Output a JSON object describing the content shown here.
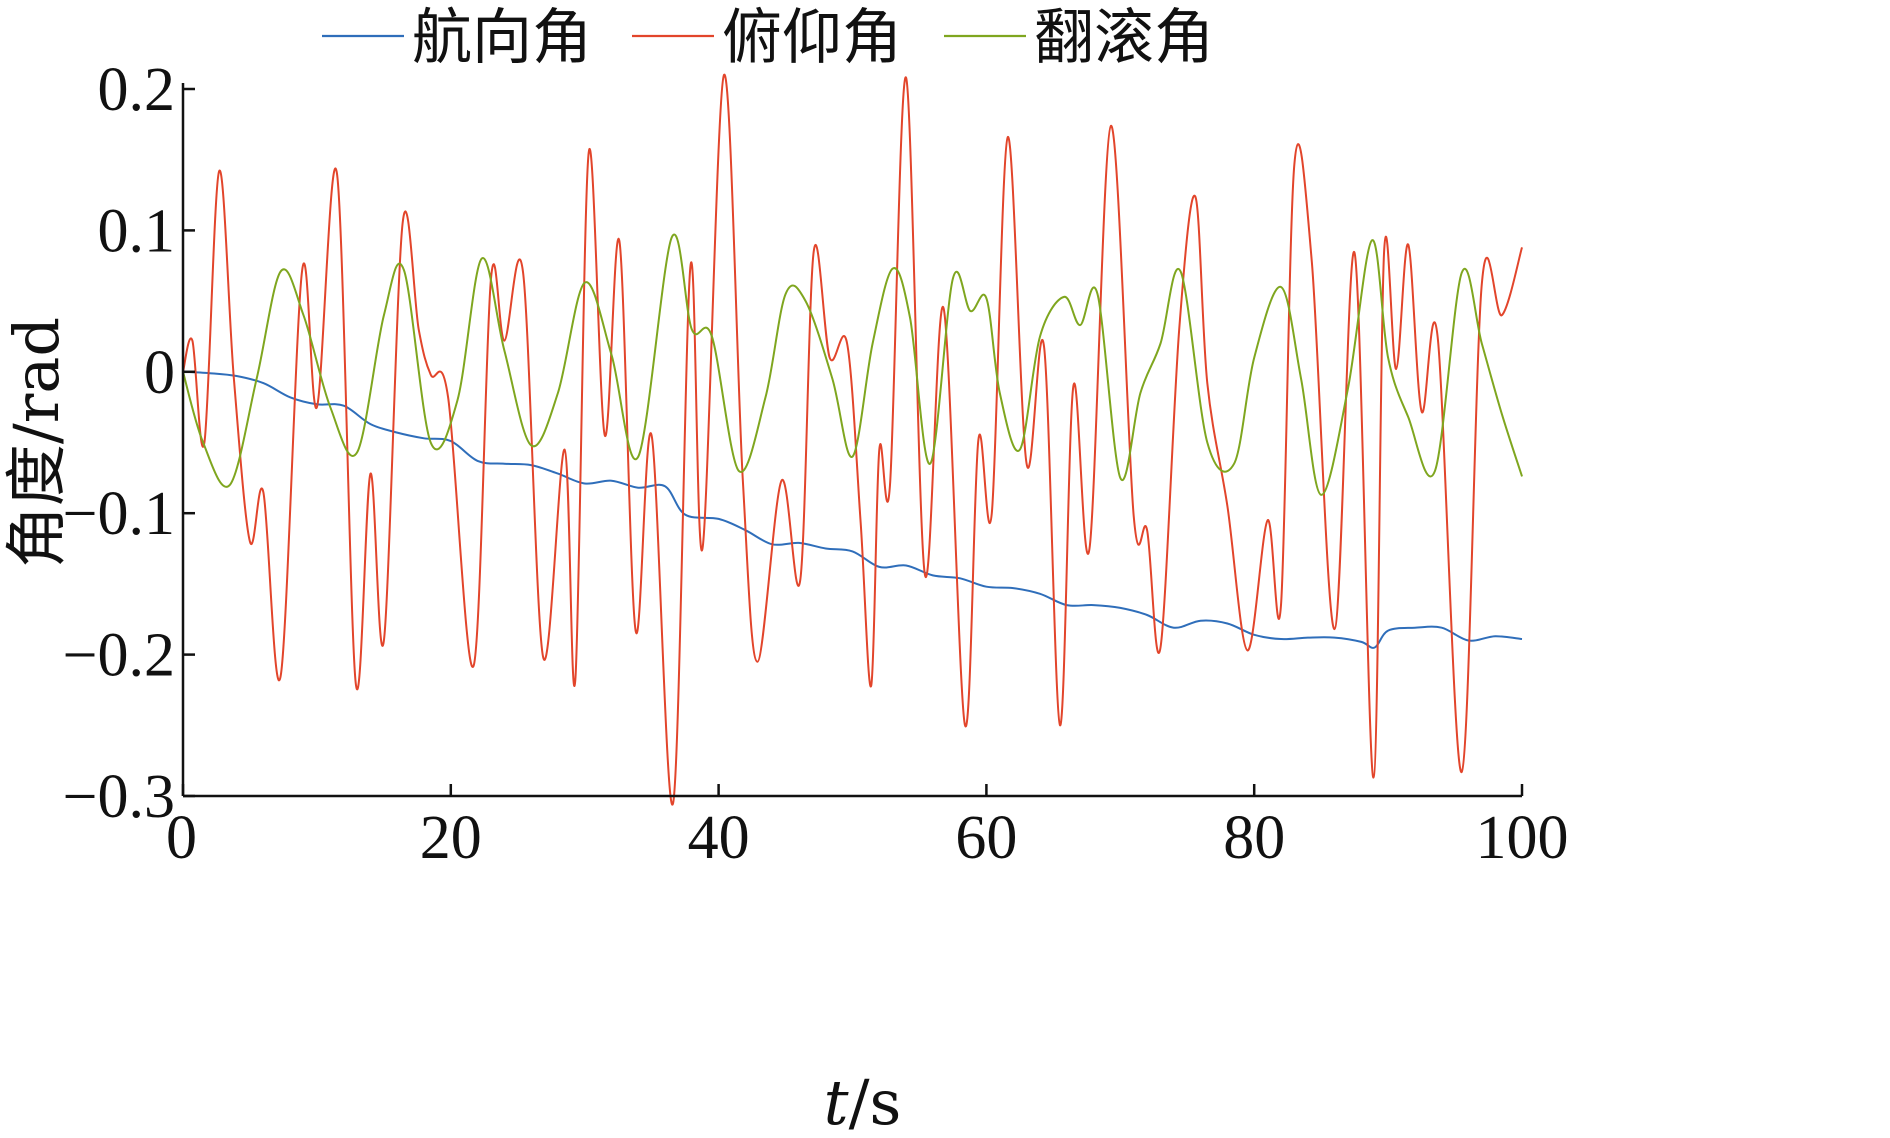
{
  "chart_data": {
    "type": "line",
    "title": "",
    "xlabel_italic": "t",
    "xlabel_rest": "/s",
    "ylabel": "角度/rad",
    "xlim": [
      0,
      100
    ],
    "ylim": [
      -0.3,
      0.2
    ],
    "xticks": [
      0,
      20,
      40,
      60,
      80,
      100
    ],
    "xtick_labels": [
      "0",
      "20",
      "40",
      "60",
      "80",
      "100"
    ],
    "yticks": [
      0.2,
      0.1,
      0,
      -0.1,
      -0.2,
      -0.3
    ],
    "ytick_labels": [
      "0.2",
      "0.1",
      "0",
      "−0.1",
      "−0.2",
      "−0.3"
    ],
    "grid": false,
    "legend_position": "top-center",
    "series": [
      {
        "name": "航向角",
        "color": "#2f6eba",
        "x": [
          0,
          2,
          4,
          6,
          8,
          10,
          12,
          14,
          16,
          18,
          20,
          22,
          24,
          26,
          28,
          30,
          32,
          34,
          36,
          37.5,
          40,
          42,
          44,
          46,
          48,
          50,
          52,
          54,
          56,
          58,
          60,
          62,
          64,
          66,
          68,
          70,
          72,
          74,
          76,
          78,
          80,
          82,
          84,
          86,
          88,
          89,
          90,
          92,
          94,
          96,
          98,
          100
        ],
        "y": [
          0,
          -0.001,
          -0.003,
          -0.008,
          -0.018,
          -0.023,
          -0.024,
          -0.037,
          -0.043,
          -0.047,
          -0.049,
          -0.063,
          -0.065,
          -0.066,
          -0.072,
          -0.079,
          -0.077,
          -0.082,
          -0.081,
          -0.101,
          -0.104,
          -0.112,
          -0.122,
          -0.121,
          -0.125,
          -0.127,
          -0.138,
          -0.137,
          -0.144,
          -0.146,
          -0.152,
          -0.153,
          -0.157,
          -0.165,
          -0.165,
          -0.167,
          -0.172,
          -0.181,
          -0.176,
          -0.178,
          -0.186,
          -0.189,
          -0.188,
          -0.188,
          -0.191,
          -0.195,
          -0.183,
          -0.181,
          -0.181,
          -0.19,
          -0.187,
          -0.189
        ]
      },
      {
        "name": "俯仰角",
        "color": "#e2452b",
        "x": [
          0,
          0.7,
          1.6,
          2.7,
          3.8,
          5.0,
          6.0,
          7.3,
          8.9,
          10.0,
          11.5,
          12.9,
          14.0,
          15.0,
          16.4,
          17.6,
          18.5,
          19.8,
          21.7,
          23.0,
          24.0,
          25.4,
          26.9,
          28.5,
          29.3,
          30.3,
          31.5,
          32.6,
          33.8,
          35.0,
          36.6,
          37.9,
          38.8,
          40.4,
          41.8,
          42.9,
          44.7,
          46.1,
          47.1,
          48.3,
          49.6,
          50.6,
          51.4,
          52.0,
          52.8,
          54.0,
          55.4,
          56.8,
          58.4,
          59.4,
          60.4,
          61.6,
          63.0,
          64.3,
          65.5,
          66.5,
          67.7,
          69.3,
          71.0,
          72.0,
          73.0,
          74.4,
          75.6,
          76.5,
          78.0,
          79.5,
          81.0,
          82.0,
          83.0,
          84.3,
          86.0,
          87.5,
          88.9,
          89.7,
          90.6,
          91.5,
          92.5,
          93.7,
          95.5,
          97.0,
          98.5,
          100
        ],
        "y": [
          0,
          0.022,
          -0.05,
          0.142,
          -0.005,
          -0.12,
          -0.085,
          -0.215,
          0.072,
          -0.025,
          0.14,
          -0.22,
          -0.072,
          -0.19,
          0.105,
          0.03,
          -0.002,
          -0.018,
          -0.208,
          0.066,
          0.022,
          0.07,
          -0.202,
          -0.055,
          -0.218,
          0.155,
          -0.045,
          0.092,
          -0.183,
          -0.045,
          -0.305,
          0.075,
          -0.125,
          0.21,
          -0.075,
          -0.205,
          -0.077,
          -0.147,
          0.085,
          0.01,
          0.02,
          -0.105,
          -0.222,
          -0.055,
          -0.08,
          0.208,
          -0.143,
          0.045,
          -0.25,
          -0.048,
          -0.1,
          0.166,
          -0.065,
          0.018,
          -0.25,
          -0.01,
          -0.125,
          0.174,
          -0.102,
          -0.112,
          -0.195,
          0.03,
          0.124,
          -0.008,
          -0.095,
          -0.197,
          -0.105,
          -0.165,
          0.147,
          0.078,
          -0.182,
          0.084,
          -0.287,
          0.085,
          0.002,
          0.09,
          -0.028,
          0.025,
          -0.283,
          0.062,
          0.04,
          0.088
        ]
      },
      {
        "name": "翻滚角",
        "color": "#7fa61f",
        "x": [
          0,
          1.5,
          3.5,
          5.5,
          7.3,
          9.0,
          11.0,
          13.0,
          15.0,
          16.5,
          18.5,
          20.5,
          22.3,
          24.0,
          26.0,
          28.0,
          30.0,
          32.0,
          34.0,
          36.5,
          38.0,
          39.5,
          41.5,
          43.5,
          45.0,
          46.5,
          48.5,
          50.0,
          51.5,
          53.0,
          54.3,
          55.8,
          57.5,
          58.8,
          60.0,
          61.0,
          62.5,
          64.0,
          65.8,
          67.0,
          68.3,
          70.0,
          71.5,
          73.0,
          74.5,
          76.5,
          78.5,
          80.0,
          82.0,
          83.5,
          85.0,
          87.0,
          88.8,
          90.0,
          91.5,
          93.5,
          95.5,
          97.0,
          98.5,
          100
        ],
        "y": [
          0,
          -0.05,
          -0.08,
          -0.005,
          0.071,
          0.04,
          -0.025,
          -0.057,
          0.04,
          0.072,
          -0.05,
          -0.02,
          0.08,
          0.015,
          -0.052,
          -0.015,
          0.063,
          0.012,
          -0.06,
          0.095,
          0.03,
          0.025,
          -0.07,
          -0.018,
          0.055,
          0.05,
          -0.005,
          -0.06,
          0.02,
          0.073,
          0.038,
          -0.065,
          0.066,
          0.043,
          0.052,
          -0.015,
          -0.055,
          0.025,
          0.053,
          0.033,
          0.055,
          -0.075,
          -0.015,
          0.02,
          0.071,
          -0.05,
          -0.065,
          0.01,
          0.06,
          -0.005,
          -0.087,
          -0.012,
          0.093,
          0.01,
          -0.032,
          -0.07,
          0.07,
          0.02,
          -0.03,
          -0.074
        ]
      }
    ]
  }
}
